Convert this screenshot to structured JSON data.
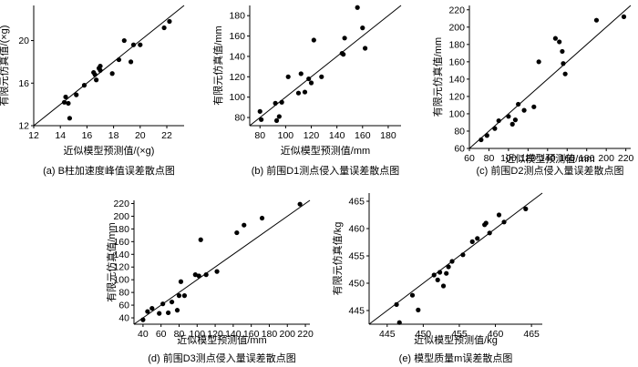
{
  "chart_data": [
    {
      "type": "scatter",
      "caption": "(a) B柱加速度峰值误差散点图",
      "xlabel": "近似模型预测值/(×g)",
      "ylabel": "有限元仿真值/(×g)",
      "xlim": [
        12,
        23.3
      ],
      "ylim": [
        12,
        23.3
      ],
      "xticks": [
        12,
        14,
        16,
        18,
        20,
        22
      ],
      "yticks": [
        12,
        16,
        20
      ],
      "x": [
        14.3,
        14.4,
        14.6,
        14.7,
        15.2,
        15.8,
        16.5,
        16.6,
        16.7,
        16.9,
        17.0,
        17.0,
        17.9,
        18.4,
        18.8,
        19.3,
        19.5,
        20.0,
        21.8,
        22.2
      ],
      "y": [
        14.2,
        14.7,
        14.1,
        12.7,
        14.9,
        15.8,
        17.0,
        16.8,
        16.3,
        17.4,
        17.2,
        17.6,
        16.9,
        18.2,
        20.0,
        18.0,
        19.6,
        19.6,
        21.2,
        21.8
      ]
    },
    {
      "type": "scatter",
      "caption": "(b) 前围D1测点侵入量误差散点图",
      "xlabel": "近似模型预测值/mm",
      "ylabel": "有限元仿真值/mm",
      "xlim": [
        72,
        190
      ],
      "ylim": [
        72,
        190
      ],
      "xticks": [
        80,
        100,
        120,
        140,
        160,
        180
      ],
      "yticks": [
        80,
        100,
        120,
        140,
        160,
        180
      ],
      "x": [
        80,
        81,
        92,
        93,
        95,
        97,
        102,
        110,
        112,
        115,
        118,
        120,
        122,
        128,
        144,
        145,
        146,
        156,
        160,
        162
      ],
      "y": [
        86,
        78,
        94,
        77,
        81,
        95,
        120,
        104,
        123,
        105,
        118,
        114,
        156,
        120,
        143,
        142,
        158,
        188,
        168,
        148
      ]
    },
    {
      "type": "scatter",
      "caption": "(c) 前围D2测点侵入量误差散点图",
      "xlabel": "近似模型预测值/mm",
      "ylabel": "有限元仿真值/mm",
      "xlim": [
        60,
        225
      ],
      "ylim": [
        60,
        225
      ],
      "xticks": [
        60,
        80,
        100,
        120,
        140,
        160,
        180,
        200,
        220
      ],
      "yticks": [
        60,
        80,
        100,
        120,
        140,
        160,
        180,
        200,
        220
      ],
      "x": [
        72,
        78,
        86,
        90,
        100,
        104,
        107,
        110,
        116,
        126,
        131,
        148,
        152,
        155,
        156,
        158,
        190,
        218
      ],
      "y": [
        70,
        75,
        83,
        92,
        97,
        88,
        93,
        111,
        104,
        108,
        160,
        187,
        183,
        172,
        158,
        146,
        208,
        212
      ]
    },
    {
      "type": "scatter",
      "caption": "(d) 前围D3测点侵入量误差散点图",
      "xlabel": "近似模型预测值/mm",
      "ylabel": "有限元仿真值/mm",
      "xlim": [
        30,
        225
      ],
      "ylim": [
        30,
        225
      ],
      "xticks": [
        40,
        60,
        80,
        100,
        120,
        140,
        160,
        180,
        200,
        220
      ],
      "yticks": [
        40,
        60,
        80,
        100,
        120,
        140,
        160,
        180,
        200,
        220
      ],
      "x": [
        40,
        45,
        50,
        58,
        62,
        68,
        72,
        78,
        80,
        82,
        86,
        98,
        102,
        104,
        110,
        122,
        144,
        152,
        172,
        214
      ],
      "y": [
        37,
        50,
        55,
        47,
        62,
        48,
        65,
        52,
        75,
        97,
        75,
        108,
        106,
        163,
        108,
        113,
        174,
        186,
        197,
        219
      ]
    },
    {
      "type": "scatter",
      "caption": "(e) 模型质量m误差散点图",
      "xlabel": "近似模型预测值/kg",
      "ylabel": "有限元仿真值/kg",
      "xlim": [
        442.5,
        466.5
      ],
      "ylim": [
        442.5,
        466.5
      ],
      "xticks": [
        445,
        450,
        455,
        460,
        465
      ],
      "yticks": [
        445,
        450,
        455,
        460,
        465
      ],
      "x": [
        446.3,
        446.7,
        448.5,
        449.3,
        451.5,
        452.0,
        452.3,
        452.8,
        453.2,
        453.5,
        454.0,
        455.5,
        456.8,
        457.5,
        458.5,
        458.7,
        459.2,
        460.5,
        461.2,
        464.2
      ],
      "y": [
        446.1,
        442.8,
        447.8,
        445.1,
        451.5,
        450.6,
        452.0,
        449.5,
        451.8,
        453.0,
        454.0,
        455.2,
        457.6,
        458.2,
        460.7,
        461.0,
        459.2,
        462.5,
        461.2,
        463.6
      ]
    }
  ]
}
